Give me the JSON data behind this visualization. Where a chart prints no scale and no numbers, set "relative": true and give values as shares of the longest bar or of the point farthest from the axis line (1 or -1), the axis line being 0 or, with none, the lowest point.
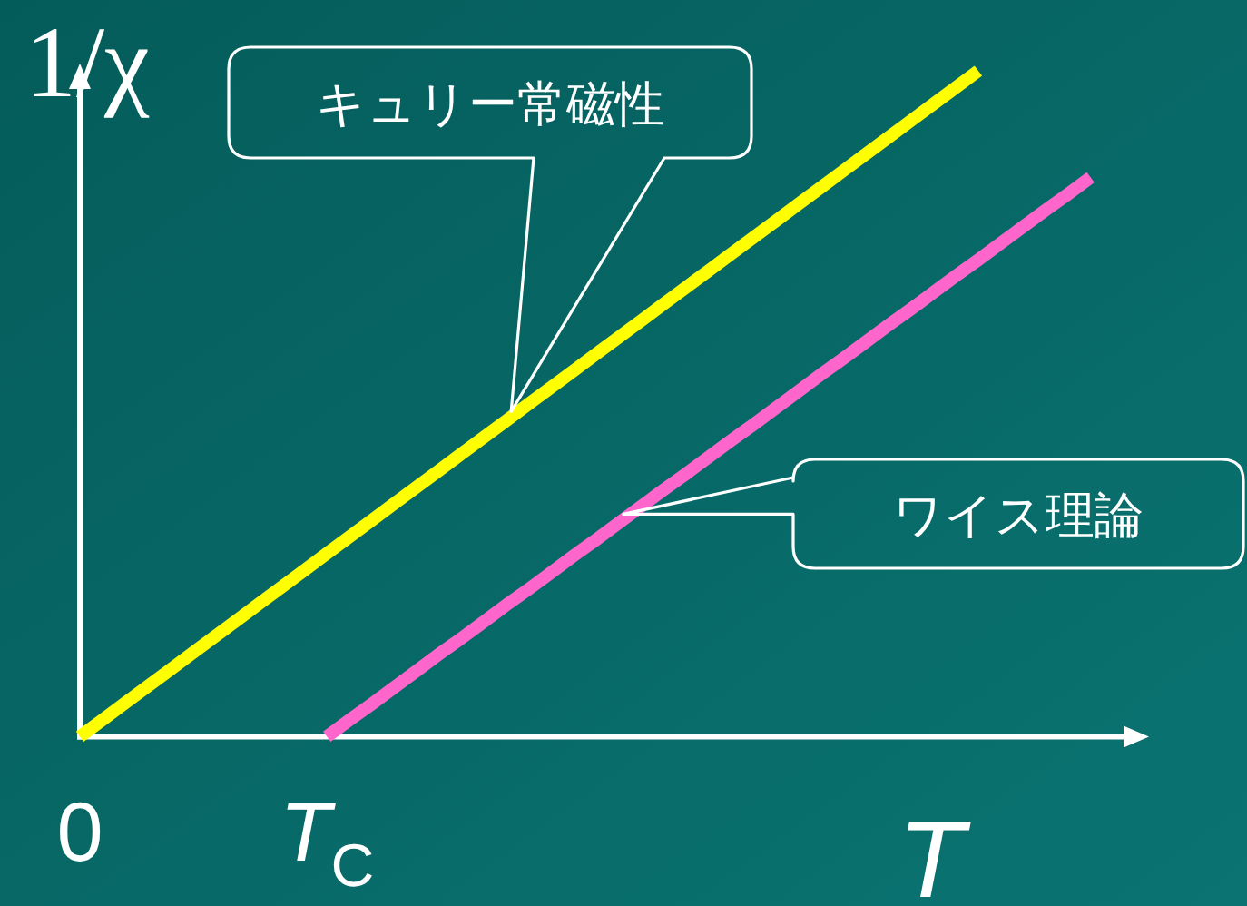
{
  "chart_data": {
    "type": "line",
    "relative": true,
    "xlabel": "T",
    "ylabel": "1/χ",
    "categories": [
      "0",
      null,
      null,
      null,
      null,
      null,
      null,
      null,
      null,
      null,
      null,
      "T$_{C}$",
      null,
      null,
      null,
      null,
      null,
      null,
      null,
      null,
      null,
      null,
      null,
      null,
      null,
      null,
      null,
      null,
      null,
      null,
      null,
      null,
      null,
      null,
      null,
      null,
      null,
      null,
      null,
      null,
      null,
      null,
      null,
      null,
      null,
      null,
      null,
      null
    ],
    "series": [
      {
        "name": "キュリー常磁性",
        "color": "#ffff00",
        "values": [
          0,
          0.025,
          0.05,
          0.075,
          0.1,
          0.125,
          0.15,
          0.175,
          0.2,
          0.225,
          0.25,
          0.275,
          0.3,
          0.325,
          0.35,
          0.375,
          0.4,
          0.425,
          0.45,
          0.475,
          0.5,
          0.525,
          0.55,
          0.575,
          0.6,
          0.625,
          0.65,
          0.675,
          0.7,
          0.725,
          0.75,
          0.775,
          0.8,
          0.825,
          0.85,
          0.875,
          0.9,
          0.925,
          0.95,
          0.975,
          1,
          null,
          null,
          null,
          null,
          null,
          null,
          null
        ]
      },
      {
        "name": "ワイス理論",
        "color": "#ff66cc",
        "values": [
          null,
          null,
          null,
          null,
          null,
          null,
          null,
          null,
          null,
          null,
          null,
          0,
          0.025,
          0.049,
          0.074,
          0.099,
          0.124,
          0.148,
          0.173,
          0.198,
          0.222,
          0.247,
          0.272,
          0.296,
          0.321,
          0.346,
          0.371,
          0.395,
          0.42,
          0.445,
          0.469,
          0.494,
          0.519,
          0.544,
          0.568,
          0.593,
          0.618,
          0.642,
          0.667,
          0.692,
          0.716,
          0.741,
          0.766,
          0.791,
          0.815,
          0.84,
          null,
          null
        ]
      }
    ]
  }
}
